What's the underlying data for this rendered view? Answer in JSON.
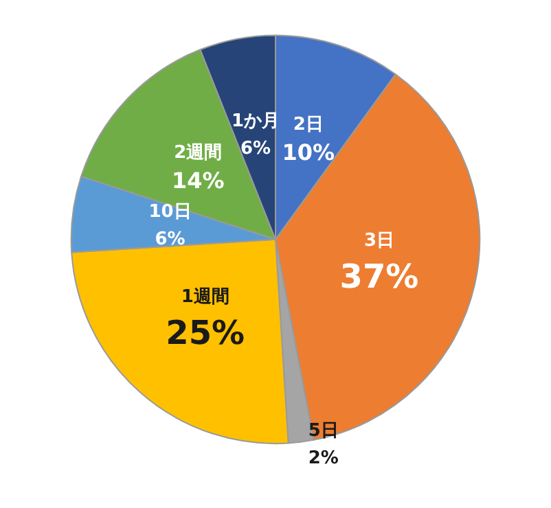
{
  "chart_data": {
    "type": "pie",
    "categories": [
      "2日",
      "3日",
      "5日",
      "1週間",
      "10日",
      "2週間",
      "1か月"
    ],
    "values": [
      10,
      37,
      2,
      25,
      6,
      14,
      6
    ],
    "colors": [
      "#4472c4",
      "#ed7d31",
      "#a5a5a5",
      "#ffc000",
      "#5b9bd5",
      "#70ad47",
      "#264478"
    ],
    "value_labels": [
      "10%",
      "37%",
      "2%",
      "25%",
      "6%",
      "14%",
      "6%"
    ],
    "legend": false
  }
}
